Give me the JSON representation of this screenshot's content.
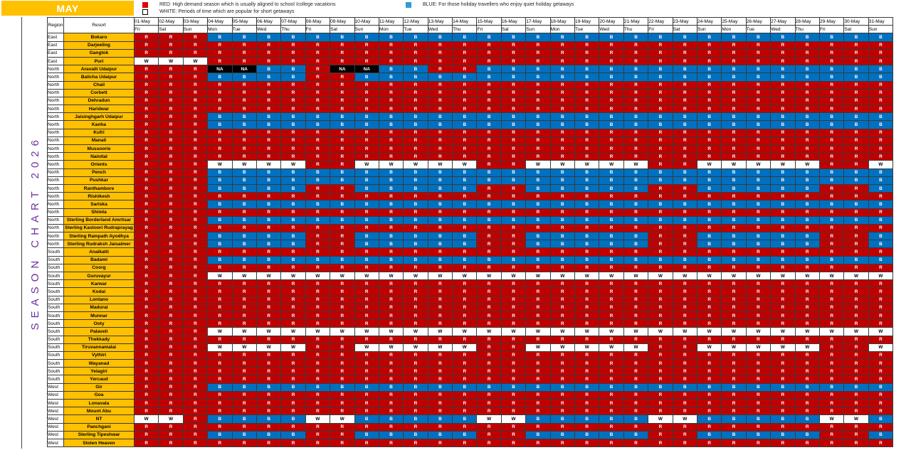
{
  "month": "MAY",
  "side_title": "SEASON CHART 2026",
  "legend": {
    "red": {
      "text": "RED: High demand season which is usually aligned to school /college vacations",
      "color": "#E00000"
    },
    "white": {
      "text": "WHITE: Periods of time which are popular for short getaways",
      "color": "#FFFFFF"
    },
    "blue": {
      "text": "BLUE: For those holiday travellers who enjoy quiet holiday getaways",
      "color": "#2E9BD6"
    }
  },
  "colors": {
    "R": "#C00000",
    "B": "#0070C0",
    "W": "#FFFFFF",
    "NA": "#000000",
    "resort_bg": "#FFC000",
    "title_text": "#7030A0"
  },
  "headers": {
    "region": "Region",
    "resort": "Resort"
  },
  "days": [
    {
      "date": "01-May",
      "dow": "Fri"
    },
    {
      "date": "02-May",
      "dow": "Sat"
    },
    {
      "date": "03-May",
      "dow": "Sun"
    },
    {
      "date": "04-May",
      "dow": "Mon"
    },
    {
      "date": "05-May",
      "dow": "Tue"
    },
    {
      "date": "06-May",
      "dow": "Wed"
    },
    {
      "date": "07-May",
      "dow": "Thu"
    },
    {
      "date": "08-May",
      "dow": "Fri"
    },
    {
      "date": "09-May",
      "dow": "Sat"
    },
    {
      "date": "10-May",
      "dow": "Sun"
    },
    {
      "date": "11-May",
      "dow": "Mon"
    },
    {
      "date": "12-May",
      "dow": "Tue"
    },
    {
      "date": "13-May",
      "dow": "Wed"
    },
    {
      "date": "14-May",
      "dow": "Thu"
    },
    {
      "date": "15-May",
      "dow": "Fri"
    },
    {
      "date": "16-May",
      "dow": "Sat"
    },
    {
      "date": "17-May",
      "dow": "Sun"
    },
    {
      "date": "18-May",
      "dow": "Mon"
    },
    {
      "date": "19-May",
      "dow": "Tue"
    },
    {
      "date": "20-May",
      "dow": "Wed"
    },
    {
      "date": "21-May",
      "dow": "Thu"
    },
    {
      "date": "22-May",
      "dow": "Fri"
    },
    {
      "date": "23-May",
      "dow": "Sat"
    },
    {
      "date": "24-May",
      "dow": "Sun"
    },
    {
      "date": "25-May",
      "dow": "Mon"
    },
    {
      "date": "26-May",
      "dow": "Tue"
    },
    {
      "date": "27-May",
      "dow": "Wed"
    },
    {
      "date": "28-May",
      "dow": "Thu"
    },
    {
      "date": "29-May",
      "dow": "Fri"
    },
    {
      "date": "30-May",
      "dow": "Sat"
    },
    {
      "date": "31-May",
      "dow": "Sun"
    }
  ],
  "chart_data": {
    "type": "table",
    "title": "SEASON CHART 2026",
    "rows": [
      {
        "region": "East",
        "resort": "Bokaro",
        "codes": "RRRBBBBBBBBBBBBBBBBBBBBBBBBBBBB"
      },
      {
        "region": "East",
        "resort": "Darjeeling",
        "codes": "RRRRRRRRRRRRRRRRRRRRRRRRRRRRRRR"
      },
      {
        "region": "East",
        "resort": "Gangtok",
        "codes": "RRRRRRRRRRRRRRRRRRRRRRRRRRRRRRR"
      },
      {
        "region": "East",
        "resort": "Puri",
        "codes": "WWWRRRRRRRRRRRRRRRRRRRRRRRRRRRR"
      },
      {
        "region": "North",
        "resort": "Aravalli Udaipur",
        "codes": "RRR[NA][NA]BBR[NA][NA]BBRRBBBBBBBBBBBBBBBBB"
      },
      {
        "region": "North",
        "resort": "Balicha Udaipur",
        "codes": "RRRBBBBRRBBBBBBBBBBBBBBBBBBBBBB"
      },
      {
        "region": "North",
        "resort": "Chail",
        "codes": "RRRRRRRRRRRRRRRRRRRRRRRRRRRRRRR"
      },
      {
        "region": "North",
        "resort": "Corbett",
        "codes": "RRRRRRRRRRRRRRRRRRRRRRRRRRRRRRR"
      },
      {
        "region": "North",
        "resort": "Dehradun",
        "codes": "RRRRRRRRRRRRRRRRRRRRRRRRRRRRRRR"
      },
      {
        "region": "North",
        "resort": "Haridwar",
        "codes": "RRRRRRRRRRRRRRRRRRRRRRRRRRRRRRR"
      },
      {
        "region": "North",
        "resort": "Jaisinghgarh Udaipur",
        "codes": "RRRBBBBBBBBBBBBBBBBBBBBBBBBBBBB"
      },
      {
        "region": "North",
        "resort": "Kanha",
        "codes": "RRRBBBBBBBBBBBBBBBBBBBBBBBBBBBB"
      },
      {
        "region": "North",
        "resort": "Kufri",
        "codes": "RRRRRRRRRRRRRRRRRRRRRRRRRRRRRRR"
      },
      {
        "region": "North",
        "resort": "Manali",
        "codes": "RRRRRRRRRRRRRRRRRRRRRRRRRRRRRRR"
      },
      {
        "region": "North",
        "resort": "Mussoorie",
        "codes": "RRRRRRRRRRRRRRRRRRRRRRRRRRRRRRR"
      },
      {
        "region": "North",
        "resort": "Nainital",
        "codes": "RRRRRRRRRRRRRRRRRRRRRRRRRRRRRRR"
      },
      {
        "region": "North",
        "resort": "Orients",
        "codes": "RRRWWWWRRWWWWWRRWWWWWRRWWWWWRRW"
      },
      {
        "region": "North",
        "resort": "Pench",
        "codes": "RRRBBBBBBBBBBBBBBBBBBBBBBBBBBBB"
      },
      {
        "region": "North",
        "resort": "Pushkar",
        "codes": "RRRBBBBBBBBBBBBBBBBBBBBBBBBBBBB"
      },
      {
        "region": "North",
        "resort": "Ranthambore",
        "codes": "RRRBBBBRRBBBBBRRBBBBBRRBBBBBRRB"
      },
      {
        "region": "North",
        "resort": "Rishikesh",
        "codes": "RRRRRRRRRRRRRRRRRRRRRRRRRRRRRRR"
      },
      {
        "region": "North",
        "resort": "Sariska",
        "codes": "RRRBBBBBBBBBBBBBBBBBBBBBBBBBBBB"
      },
      {
        "region": "North",
        "resort": "Shimla",
        "codes": "RRRRRRRRRRRRRRRRRRRRRRRRRRRRRRR"
      },
      {
        "region": "North",
        "resort": "Sterling Borderland Amritsar",
        "codes": "RRRBBBBBBBBBBBBBBBBBBBBBBBBBBBB"
      },
      {
        "region": "North",
        "resort": "Sterling Kastoori Rudraprayag",
        "codes": "RRRRRRRRRRRRRRRRRRRRRRRRRRRRRRR"
      },
      {
        "region": "North",
        "resort": "Sterling Rampath Ayodhya",
        "codes": "RRRBBBBRRBBBBBRRBBBBBRRBBBBBRRB"
      },
      {
        "region": "North",
        "resort": "Sterling Rudraksh Jaisalmer",
        "codes": "RRRBBBBRRBBBBBRRBBBBBRRBBBBBRRB"
      },
      {
        "region": "South",
        "resort": "Anaikatti",
        "codes": "RRRRRRRRRRRRRRRRRRRRRRRRRRRRRRR"
      },
      {
        "region": "South",
        "resort": "Badami",
        "codes": "RRRBBBBBBBBBBBBBBBBBBBBBBBBBBBB"
      },
      {
        "region": "South",
        "resort": "Coorg",
        "codes": "RRRRRRRRRRRRRRRRRRRRRRRRRRRRRRR"
      },
      {
        "region": "South",
        "resort": "Guruvayur",
        "codes": "RRRWWWWWWWWWWWWWWWWWWWWWWWWWWWW"
      },
      {
        "region": "South",
        "resort": "Karwar",
        "codes": "RRRRRRRRRRRRRRRRRRRRRRRRRRRRRRR"
      },
      {
        "region": "South",
        "resort": "Kodai",
        "codes": "RRRRRRRRRRRRRRRRRRRRRRRRRRRRRRR"
      },
      {
        "region": "South",
        "resort": "Lontano",
        "codes": "RRRRRRRRRRRRRRRRRRRRRRRRRRRRRRR"
      },
      {
        "region": "South",
        "resort": "Madurai",
        "codes": "RRRRRRRRRRRRRRRRRRRRRRRRRRRRRRR"
      },
      {
        "region": "South",
        "resort": "Munnar",
        "codes": "RRRRRRRRRRRRRRRRRRRRRRRRRRRRRRR"
      },
      {
        "region": "South",
        "resort": "Ooty",
        "codes": "RRRRRRRRRRRRRRRRRRRRRRRRRRRRRRR"
      },
      {
        "region": "South",
        "resort": "Palaveli",
        "codes": "RRRWWWWWWWWWWWWWWWWWWWWWWWWWWWW"
      },
      {
        "region": "South",
        "resort": "Thekkady",
        "codes": "RRRRRRRRRRRRRRRRRRRRRRRRRRRRRRR"
      },
      {
        "region": "South",
        "resort": "Tiruvannamalai",
        "codes": "RRRWWWWRRWWWWWRRWWWWWRRWWWWWRRW"
      },
      {
        "region": "South",
        "resort": "Vythiri",
        "codes": "RRRRRRRRRRRRRRRRRRRRRRRRRRRRRRR"
      },
      {
        "region": "South",
        "resort": "Wayanad",
        "codes": "RRRRRRRRRRRRRRRRRRRRRRRRRRRRRRR"
      },
      {
        "region": "South",
        "resort": "Yelagiri",
        "codes": "RRRRRRRRRRRRRRRRRRRRRRRRRRRRRRR"
      },
      {
        "region": "South",
        "resort": "Yercaud",
        "codes": "RRRRRRRRRRRRRRRRRRRRRRRRRRRRRRR"
      },
      {
        "region": "West",
        "resort": "Gir",
        "codes": "RRRBBBBBBBBBBBBBBBBBBBBBBBBBBBB"
      },
      {
        "region": "West",
        "resort": "Goa",
        "codes": "RRRRRRRRRRRRRRRRRRRRRRRRRRRRRRR"
      },
      {
        "region": "West",
        "resort": "Lonavala",
        "codes": "RRRRRRRRRRRRRRRRRRRRRRRRRRRRRRR"
      },
      {
        "region": "West",
        "resort": "Mount Abu",
        "codes": "RRRRRRRRRRRRRRRRRRRRRRRRRRRRRRR"
      },
      {
        "region": "West",
        "resort": "NT",
        "codes": "WWRBBBBWWBBBBBWWBBBBBWWBBBBBWWB"
      },
      {
        "region": "West",
        "resort": "Panchgani",
        "codes": "RRRRRRRRRRRRRRRRRRRRRRRRRRRRRRR"
      },
      {
        "region": "West",
        "resort": "Sterling Tipeshwar",
        "codes": "RRRBBBBRRBBBBBRRBBBBBRRBBBBBRRB"
      },
      {
        "region": "West",
        "resort": "Stolen Heaven",
        "codes": "RRRRRRRRRRRRRRRRRRRRRRRRRRRRRRR"
      }
    ]
  }
}
